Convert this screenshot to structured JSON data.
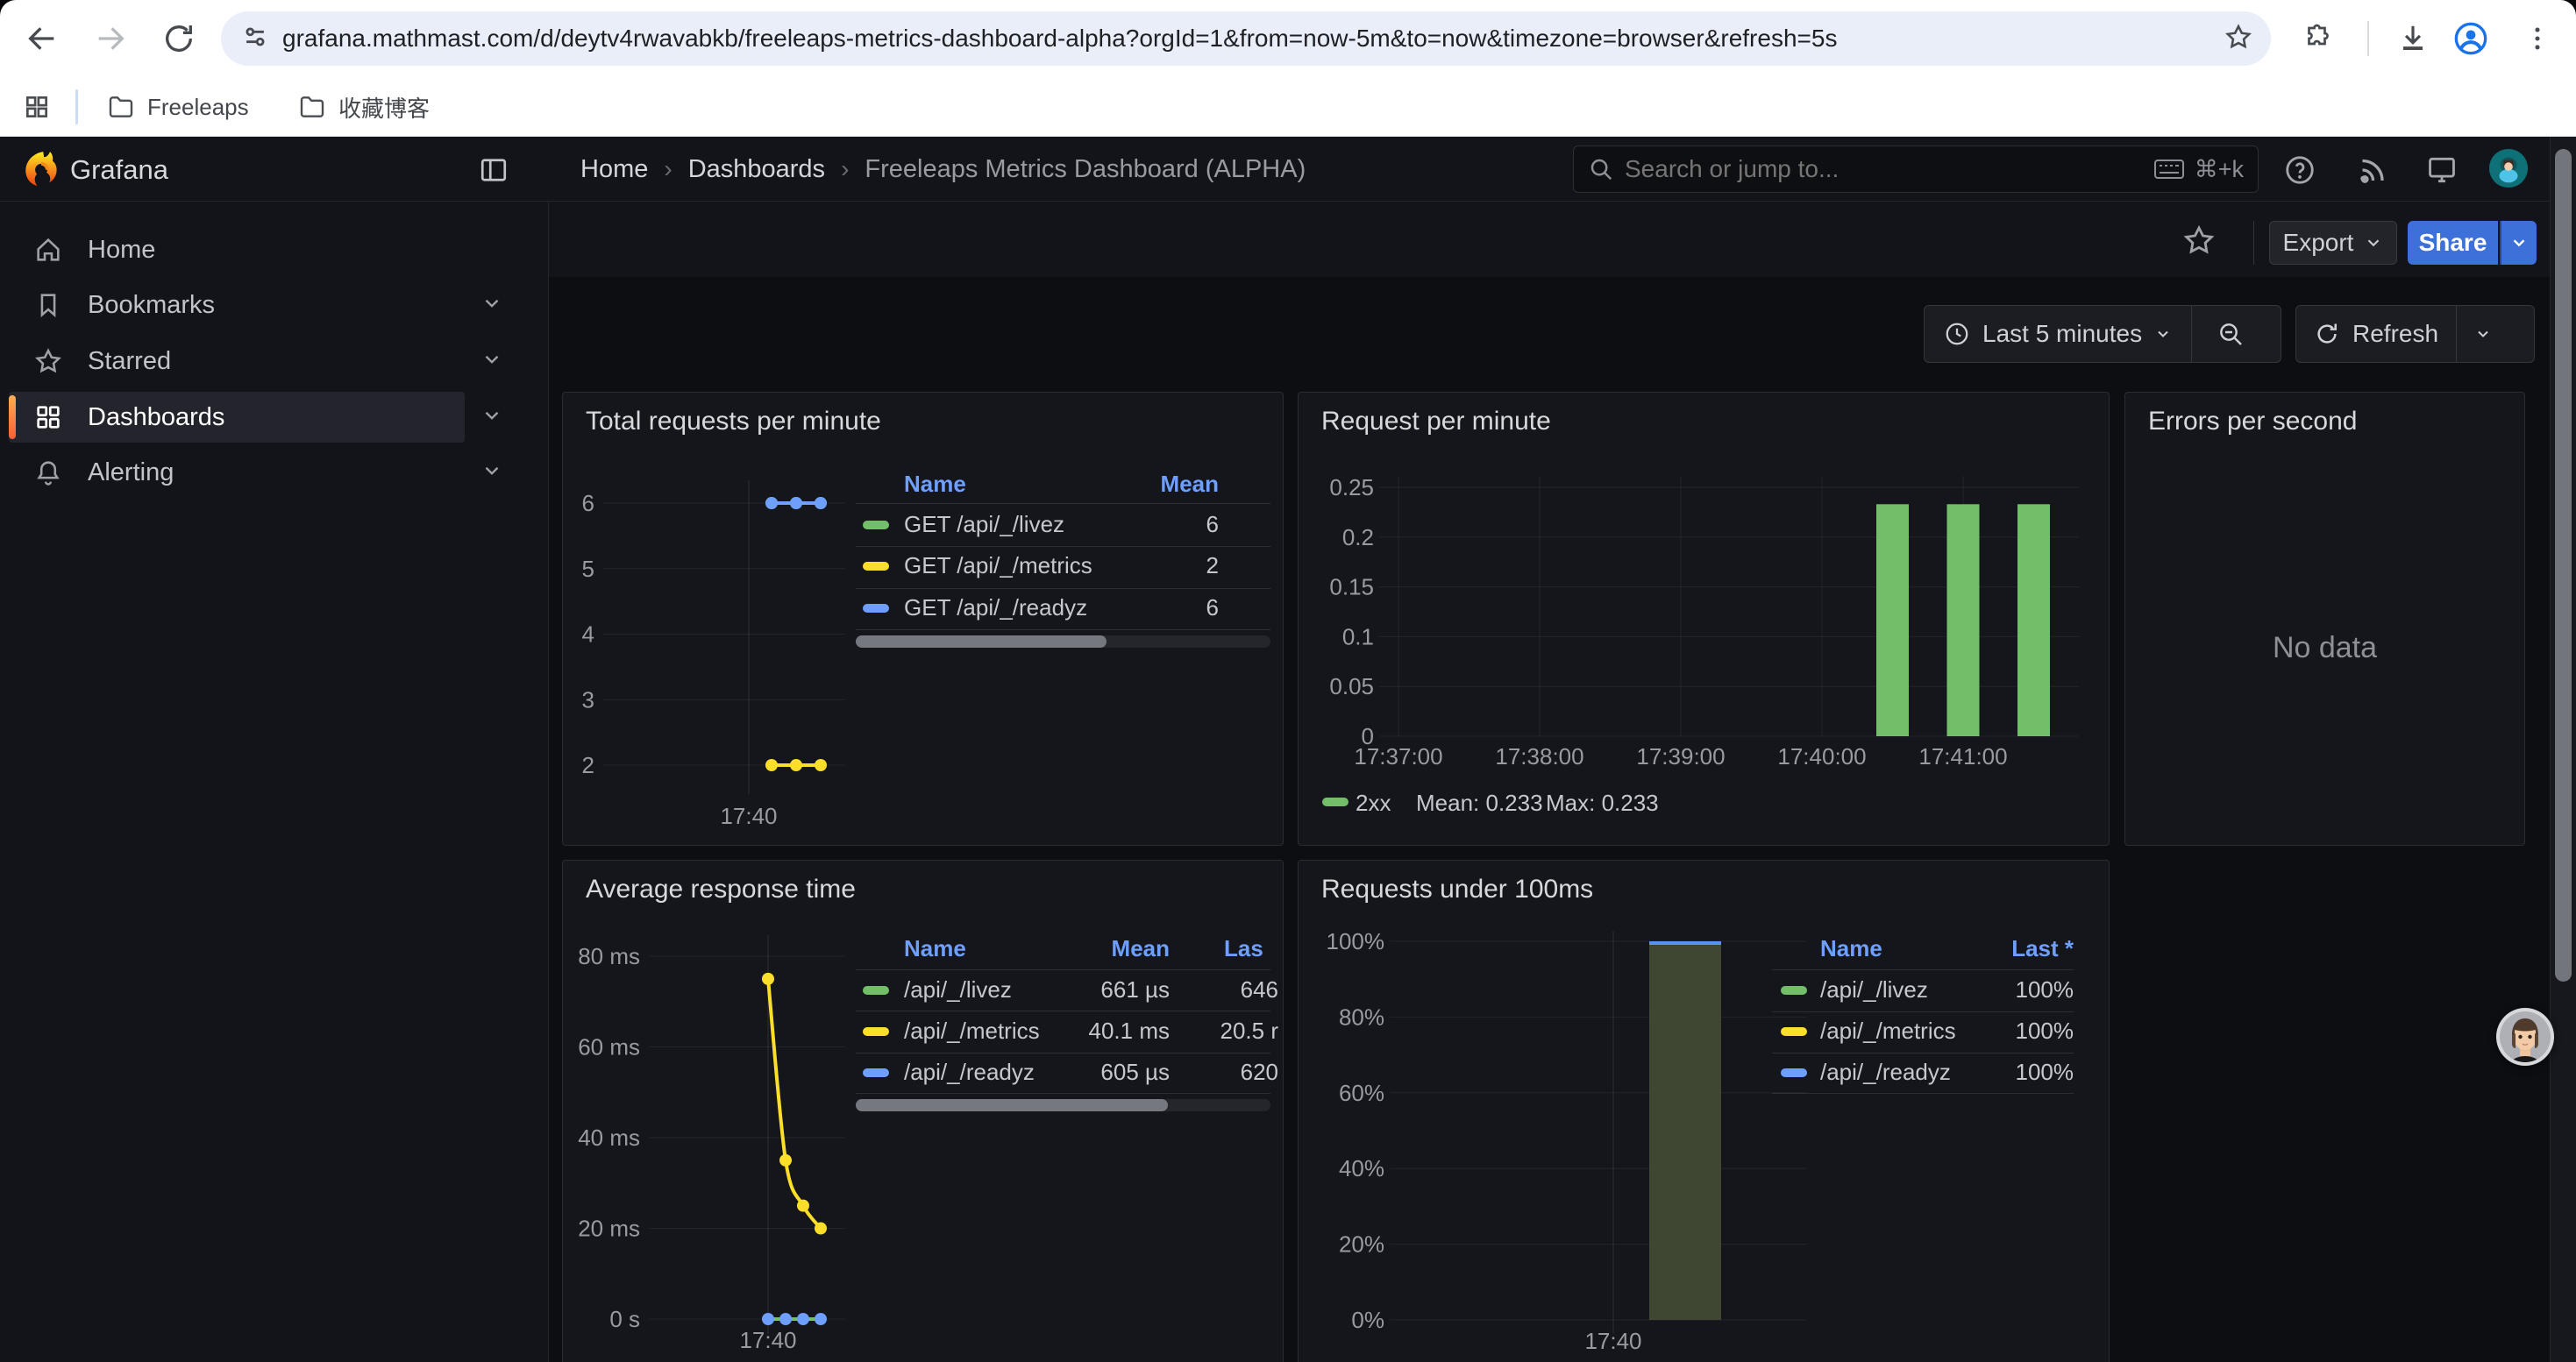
{
  "browser": {
    "url": "grafana.mathmast.com/d/deytv4rwavabkb/freeleaps-metrics-dashboard-alpha?orgId=1&from=now-5m&to=now&timezone=browser&refresh=5s",
    "bookmarks": [
      {
        "label": "Freeleaps"
      },
      {
        "label": "收藏博客"
      }
    ]
  },
  "grafana": {
    "brand": "Grafana",
    "breadcrumb": [
      "Home",
      "Dashboards",
      "Freeleaps Metrics Dashboard (ALPHA)"
    ],
    "search": {
      "placeholder": "Search or jump to...",
      "shortcut": "⌘+k"
    },
    "sidebar": {
      "items": [
        {
          "label": "Home",
          "icon": "home-icon",
          "expandable": false,
          "active": false
        },
        {
          "label": "Bookmarks",
          "icon": "bookmark-icon",
          "expandable": true,
          "active": false
        },
        {
          "label": "Starred",
          "icon": "star-icon",
          "expandable": true,
          "active": false
        },
        {
          "label": "Dashboards",
          "icon": "apps-grid-icon",
          "expandable": true,
          "active": true
        },
        {
          "label": "Alerting",
          "icon": "bell-icon",
          "expandable": true,
          "active": false
        }
      ]
    },
    "actions": {
      "export_label": "Export",
      "share_label": "Share"
    },
    "toolbar": {
      "time_range": "Last 5 minutes",
      "refresh_label": "Refresh"
    }
  },
  "colors": {
    "accent_blue": "#3D71D9",
    "link_blue": "#6E9FFF",
    "green": "#73BF69",
    "yellow": "#FADE2A",
    "blue": "#6E9FFF",
    "active_orange": "#F55F3B"
  },
  "chart_data": [
    {
      "id": "total-requests-per-minute",
      "type": "line",
      "title": "Total requests per minute",
      "y_ticks": [
        "6",
        "5",
        "4",
        "3",
        "2"
      ],
      "y_range": [
        2,
        6
      ],
      "x_tick": "17:40",
      "legend_columns": [
        "Name",
        "Mean"
      ],
      "series": [
        {
          "name": "GET /api/_/livez",
          "color": "#73BF69",
          "values": [
            6,
            6,
            6
          ],
          "mean": "6"
        },
        {
          "name": "GET /api/_/metrics",
          "color": "#FADE2A",
          "values": [
            2,
            2,
            2
          ],
          "mean": "2"
        },
        {
          "name": "GET /api/_/readyz",
          "color": "#6E9FFF",
          "values": [
            6,
            6,
            6
          ],
          "mean": "6"
        }
      ]
    },
    {
      "id": "request-per-minute",
      "type": "bar",
      "title": "Request per minute",
      "y_ticks": [
        "0.25",
        "0.2",
        "0.15",
        "0.1",
        "0.05",
        "0"
      ],
      "y_range": [
        0,
        0.25
      ],
      "x_ticks": [
        "17:37:00",
        "17:38:00",
        "17:39:00",
        "17:40:00",
        "17:41:00"
      ],
      "bars": [
        {
          "x": "17:40:30",
          "value": 0.233
        },
        {
          "x": "17:41:00",
          "value": 0.233
        },
        {
          "x": "17:41:30",
          "value": 0.233
        }
      ],
      "bar_color": "#73BF69",
      "legend": {
        "series": "2xx",
        "mean_label": "Mean: 0.233",
        "max_label": "Max: 0.233",
        "color": "#73BF69"
      }
    },
    {
      "id": "errors-per-second",
      "type": "none",
      "title": "Errors per second",
      "message": "No data"
    },
    {
      "id": "average-response-time",
      "type": "line",
      "title": "Average response time",
      "y_ticks": [
        "80 ms",
        "60 ms",
        "40 ms",
        "20 ms",
        "0 s"
      ],
      "y_range_ms": [
        0,
        80
      ],
      "x_tick": "17:40",
      "legend_columns": [
        "Name",
        "Mean",
        "Las"
      ],
      "series": [
        {
          "name": "/api/_/livez",
          "color": "#73BF69",
          "kind": "flat",
          "values_ms": [
            0,
            0,
            0,
            0
          ],
          "mean": "661 µs",
          "last": "646"
        },
        {
          "name": "/api/_/metrics",
          "color": "#FADE2A",
          "kind": "curve",
          "values_ms": [
            75,
            35,
            25,
            20
          ],
          "mean": "40.1 ms",
          "last": "20.5 r"
        },
        {
          "name": "/api/_/readyz",
          "color": "#6E9FFF",
          "kind": "dots",
          "values_ms": [
            0,
            0,
            0,
            0
          ],
          "mean": "605 µs",
          "last": "620"
        }
      ]
    },
    {
      "id": "requests-under-100ms",
      "type": "bar",
      "title": "Requests under 100ms",
      "y_ticks": [
        "100%",
        "80%",
        "60%",
        "40%",
        "20%",
        "0%"
      ],
      "y_range": [
        0,
        100
      ],
      "x_tick": "17:40",
      "bars": [
        {
          "x": "17:40",
          "value": 100
        }
      ],
      "bar_fill": "#3f4732",
      "bar_cap_color": "#5794F2",
      "legend_columns": [
        "Name",
        "Last *"
      ],
      "series_legend": [
        {
          "name": "/api/_/livez",
          "color": "#73BF69",
          "last": "100%"
        },
        {
          "name": "/api/_/metrics",
          "color": "#FADE2A",
          "last": "100%"
        },
        {
          "name": "/api/_/readyz",
          "color": "#6E9FFF",
          "last": "100%"
        }
      ]
    }
  ]
}
